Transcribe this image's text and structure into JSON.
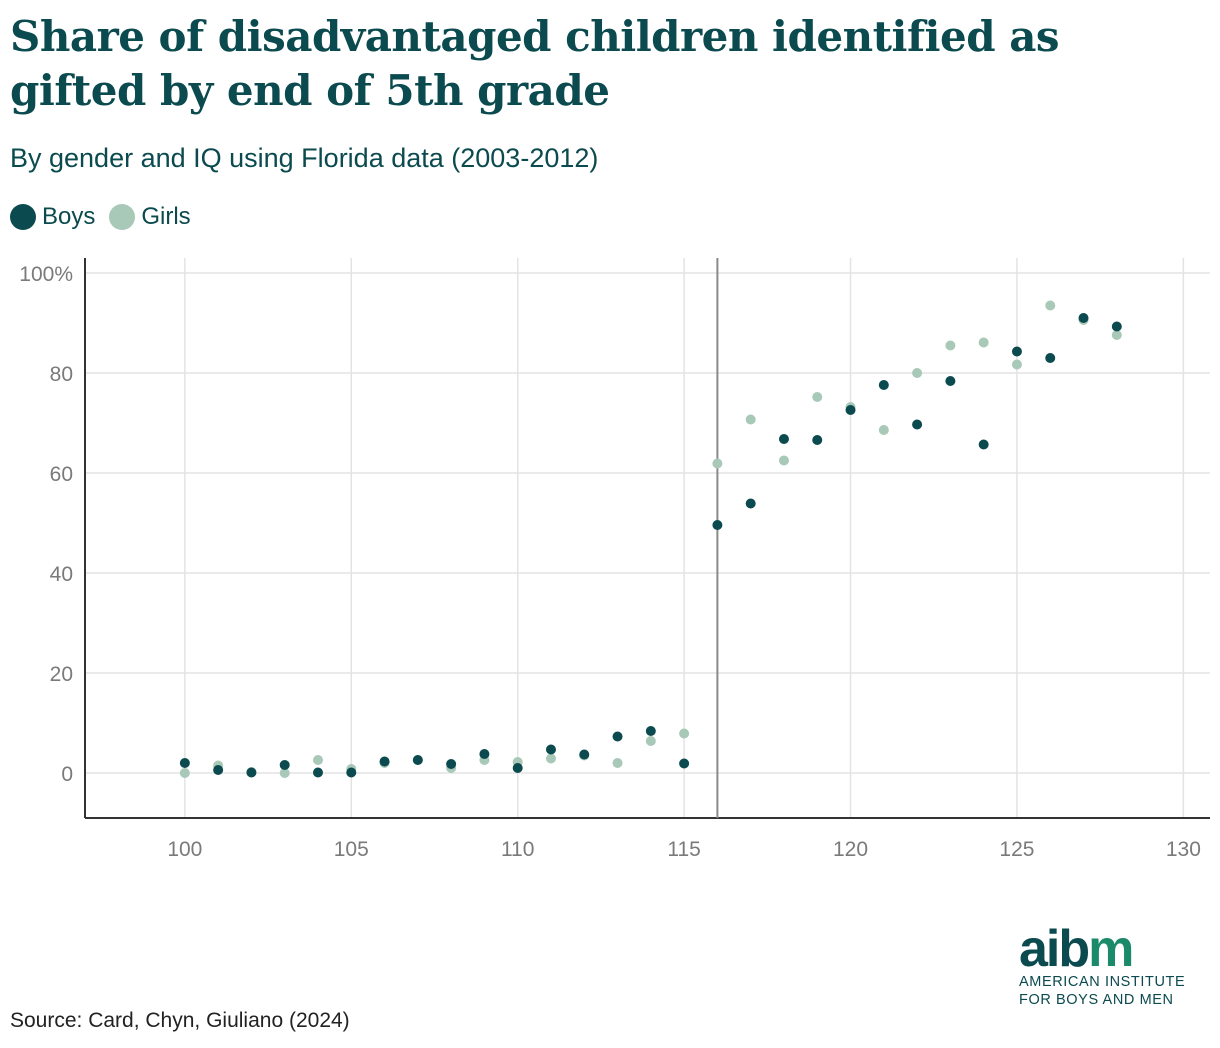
{
  "title": "Share of disadvantaged children identified as gifted by end of 5th grade",
  "subtitle": "By gender and IQ using Florida data (2003-2012)",
  "source": "Source: Card, Chyn, Giuliano (2024)",
  "logo": {
    "word_a": "aib",
    "word_b": "m",
    "line1": "AMERICAN INSTITUTE",
    "line2": "FOR BOYS AND MEN"
  },
  "chart_data": {
    "type": "scatter",
    "title": "Share of disadvantaged children identified as gifted by end of 5th grade",
    "subtitle": "By gender and IQ using Florida data (2003-2012)",
    "xlabel": "",
    "ylabel": "",
    "xlim": [
      97,
      130.8
    ],
    "ylim": [
      -9,
      103
    ],
    "x_ticks": [
      100,
      105,
      110,
      115,
      120,
      125,
      130
    ],
    "y_ticks": [
      0,
      20,
      40,
      60,
      80,
      100
    ],
    "y_tick_labels": [
      "0",
      "20",
      "40",
      "60",
      "80",
      "100%"
    ],
    "cutoff_line_x": 116,
    "grid": true,
    "legend_position": "top-left",
    "series": [
      {
        "name": "Boys",
        "color": "#0b4a4e",
        "x": [
          100,
          101,
          102,
          103,
          104,
          105,
          106,
          107,
          108,
          109,
          110,
          111,
          112,
          113,
          114,
          115,
          116,
          117,
          118,
          119,
          120,
          121,
          122,
          123,
          124,
          125,
          126,
          127,
          128
        ],
        "values": [
          2.0,
          0.6,
          0.1,
          1.6,
          0.1,
          0.1,
          2.3,
          2.6,
          1.8,
          3.8,
          1.0,
          4.7,
          3.7,
          7.3,
          8.4,
          1.9,
          49.6,
          53.9,
          66.8,
          66.6,
          72.6,
          77.6,
          69.7,
          78.4,
          65.7,
          84.3,
          83.0,
          91.0,
          89.3
        ]
      },
      {
        "name": "Girls",
        "color": "#a8c8b8",
        "x": [
          100,
          101,
          102,
          103,
          104,
          105,
          106,
          107,
          108,
          109,
          110,
          111,
          112,
          113,
          114,
          115,
          116,
          117,
          118,
          119,
          120,
          121,
          122,
          123,
          124,
          125,
          126,
          127,
          128
        ],
        "values": [
          0.0,
          1.5,
          0.2,
          0.0,
          2.6,
          0.8,
          2.0,
          2.6,
          1.0,
          2.6,
          2.2,
          2.9,
          3.5,
          2.0,
          6.4,
          7.9,
          61.9,
          70.7,
          62.5,
          75.2,
          73.2,
          68.6,
          80.0,
          85.5,
          86.1,
          81.7,
          93.5,
          90.6,
          87.6
        ]
      }
    ]
  }
}
